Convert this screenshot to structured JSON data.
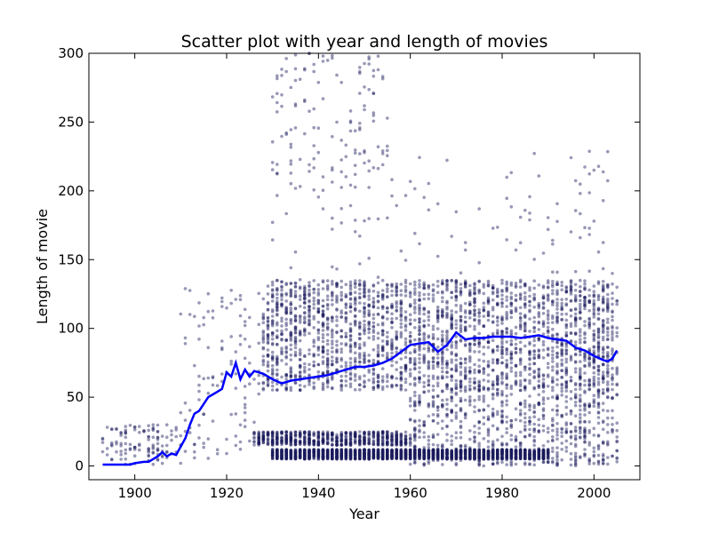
{
  "chart_data": {
    "type": "scatter",
    "title": "Scatter plot with year and length of movies",
    "xlabel": "Year",
    "ylabel": "Length of movie",
    "xlim": [
      1890,
      2010
    ],
    "ylim": [
      -10,
      300
    ],
    "xticks": [
      1900,
      1920,
      1940,
      1960,
      1980,
      2000
    ],
    "yticks": [
      0,
      50,
      100,
      150,
      200,
      250,
      300
    ],
    "grid": false,
    "colors": {
      "scatter": "#1a1a5e",
      "trend": "#0000ff",
      "frame": "#000000"
    },
    "series": [
      {
        "type": "scatter",
        "note_values": "individual movies, year vs length in minutes",
        "clusters": [
          {
            "x": [
              1893,
              1910
            ],
            "y": [
              1,
              30
            ],
            "density": "sparse"
          },
          {
            "x": [
              1910,
              1928
            ],
            "y": [
              5,
              130
            ],
            "density": "sparse"
          },
          {
            "x": [
              1928,
              2005
            ],
            "y": [
              55,
              135
            ],
            "density": "dense"
          },
          {
            "x": [
              1928,
              2005
            ],
            "y": [
              135,
              230
            ],
            "density": "sparse"
          },
          {
            "x": [
              1926,
              1960
            ],
            "y": [
              15,
              25
            ],
            "density": "medium"
          },
          {
            "x": [
              1930,
              1990
            ],
            "y": [
              5,
              12
            ],
            "density": "dense"
          },
          {
            "x": [
              1960,
              2005
            ],
            "y": [
              0,
              55
            ],
            "density": "medium"
          },
          {
            "x": [
              1930,
              1955
            ],
            "y": [
              200,
              300
            ],
            "density": "sparse"
          }
        ]
      },
      {
        "type": "line",
        "points": [
          [
            1893,
            1
          ],
          [
            1895,
            1
          ],
          [
            1897,
            1
          ],
          [
            1899,
            1
          ],
          [
            1900,
            2
          ],
          [
            1902,
            3
          ],
          [
            1903,
            3
          ],
          [
            1904,
            5
          ],
          [
            1905,
            7
          ],
          [
            1906,
            10
          ],
          [
            1907,
            7
          ],
          [
            1908,
            9
          ],
          [
            1909,
            8
          ],
          [
            1910,
            14
          ],
          [
            1911,
            20
          ],
          [
            1912,
            30
          ],
          [
            1913,
            38
          ],
          [
            1914,
            40
          ],
          [
            1915,
            45
          ],
          [
            1916,
            50
          ],
          [
            1917,
            52
          ],
          [
            1918,
            54
          ],
          [
            1919,
            56
          ],
          [
            1920,
            68
          ],
          [
            1921,
            65
          ],
          [
            1922,
            75
          ],
          [
            1923,
            63
          ],
          [
            1924,
            70
          ],
          [
            1925,
            65
          ],
          [
            1926,
            69
          ],
          [
            1927,
            68
          ],
          [
            1928,
            67
          ],
          [
            1930,
            63
          ],
          [
            1932,
            60
          ],
          [
            1934,
            62
          ],
          [
            1936,
            63
          ],
          [
            1938,
            64
          ],
          [
            1940,
            65
          ],
          [
            1942,
            66
          ],
          [
            1944,
            68
          ],
          [
            1946,
            70
          ],
          [
            1948,
            72
          ],
          [
            1950,
            72
          ],
          [
            1952,
            73
          ],
          [
            1954,
            75
          ],
          [
            1956,
            78
          ],
          [
            1958,
            83
          ],
          [
            1960,
            88
          ],
          [
            1962,
            89
          ],
          [
            1964,
            90
          ],
          [
            1966,
            83
          ],
          [
            1968,
            88
          ],
          [
            1970,
            97
          ],
          [
            1972,
            92
          ],
          [
            1974,
            93
          ],
          [
            1976,
            93
          ],
          [
            1978,
            94
          ],
          [
            1980,
            94
          ],
          [
            1982,
            94
          ],
          [
            1984,
            93
          ],
          [
            1986,
            94
          ],
          [
            1988,
            95
          ],
          [
            1990,
            93
          ],
          [
            1992,
            92
          ],
          [
            1994,
            91
          ],
          [
            1996,
            86
          ],
          [
            1998,
            84
          ],
          [
            2000,
            80
          ],
          [
            2002,
            77
          ],
          [
            2003,
            76
          ],
          [
            2004,
            78
          ],
          [
            2005,
            84
          ]
        ]
      }
    ]
  }
}
